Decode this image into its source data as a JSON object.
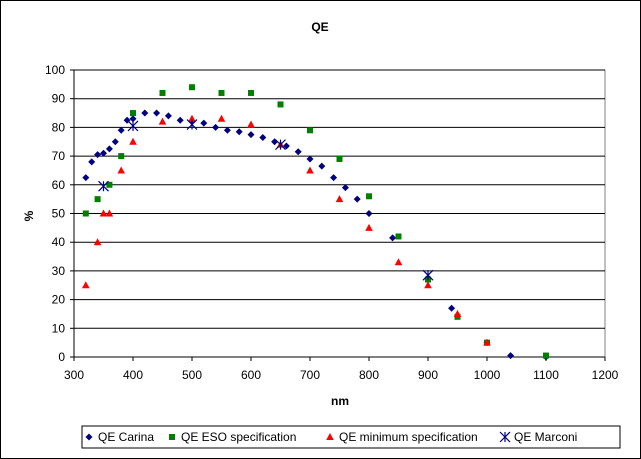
{
  "chart_data": {
    "type": "scatter",
    "title": "QE",
    "xlabel": "nm",
    "ylabel": "%",
    "xlim": [
      300,
      1200
    ],
    "ylim": [
      0,
      100
    ],
    "x_ticks": [
      300,
      400,
      500,
      600,
      700,
      800,
      900,
      1000,
      1100,
      1200
    ],
    "y_ticks": [
      0,
      10,
      20,
      30,
      40,
      50,
      60,
      70,
      80,
      90,
      100
    ],
    "grid": "horizontal",
    "legend_position": "bottom",
    "series": [
      {
        "name": "QE Carina",
        "marker": "diamond",
        "color": "#000080",
        "points": [
          [
            320,
            62.5
          ],
          [
            330,
            68
          ],
          [
            340,
            70.5
          ],
          [
            350,
            71
          ],
          [
            360,
            72.5
          ],
          [
            370,
            75
          ],
          [
            380,
            79
          ],
          [
            390,
            82.5
          ],
          [
            400,
            83
          ],
          [
            420,
            85
          ],
          [
            440,
            85
          ],
          [
            460,
            84
          ],
          [
            480,
            82.5
          ],
          [
            500,
            82
          ],
          [
            520,
            81.5
          ],
          [
            540,
            80
          ],
          [
            560,
            79
          ],
          [
            580,
            78.5
          ],
          [
            600,
            77.5
          ],
          [
            620,
            76.5
          ],
          [
            640,
            75
          ],
          [
            660,
            73.5
          ],
          [
            680,
            71.5
          ],
          [
            700,
            69
          ],
          [
            720,
            66.5
          ],
          [
            740,
            62.5
          ],
          [
            760,
            59
          ],
          [
            780,
            55
          ],
          [
            800,
            50
          ],
          [
            840,
            41.5
          ],
          [
            900,
            27.5
          ],
          [
            940,
            17
          ],
          [
            1000,
            5
          ],
          [
            1040,
            0.5
          ],
          [
            1100,
            0
          ]
        ]
      },
      {
        "name": "QE ESO specification",
        "marker": "square",
        "color": "#008000",
        "points": [
          [
            320,
            50
          ],
          [
            340,
            55
          ],
          [
            360,
            60
          ],
          [
            380,
            70
          ],
          [
            400,
            85
          ],
          [
            450,
            92
          ],
          [
            500,
            94
          ],
          [
            550,
            92
          ],
          [
            600,
            92
          ],
          [
            650,
            88
          ],
          [
            700,
            79
          ],
          [
            750,
            69
          ],
          [
            800,
            56
          ],
          [
            850,
            42
          ],
          [
            900,
            27
          ],
          [
            950,
            14
          ],
          [
            1000,
            5
          ],
          [
            1100,
            0.5
          ]
        ]
      },
      {
        "name": "QE minimum specification",
        "marker": "triangle",
        "color": "#ff0000",
        "points": [
          [
            320,
            25
          ],
          [
            340,
            40
          ],
          [
            350,
            50
          ],
          [
            360,
            50
          ],
          [
            380,
            65
          ],
          [
            400,
            75
          ],
          [
            450,
            82
          ],
          [
            500,
            83
          ],
          [
            550,
            83
          ],
          [
            600,
            81
          ],
          [
            650,
            74
          ],
          [
            700,
            65
          ],
          [
            750,
            55
          ],
          [
            800,
            45
          ],
          [
            850,
            33
          ],
          [
            900,
            25
          ],
          [
            950,
            15
          ],
          [
            1000,
            5
          ]
        ]
      },
      {
        "name": "QE Marconi",
        "marker": "star",
        "color": "#000080",
        "points": [
          [
            350,
            59.5
          ],
          [
            400,
            80.5
          ],
          [
            500,
            81
          ],
          [
            650,
            74
          ],
          [
            900,
            28.5
          ]
        ]
      }
    ]
  }
}
